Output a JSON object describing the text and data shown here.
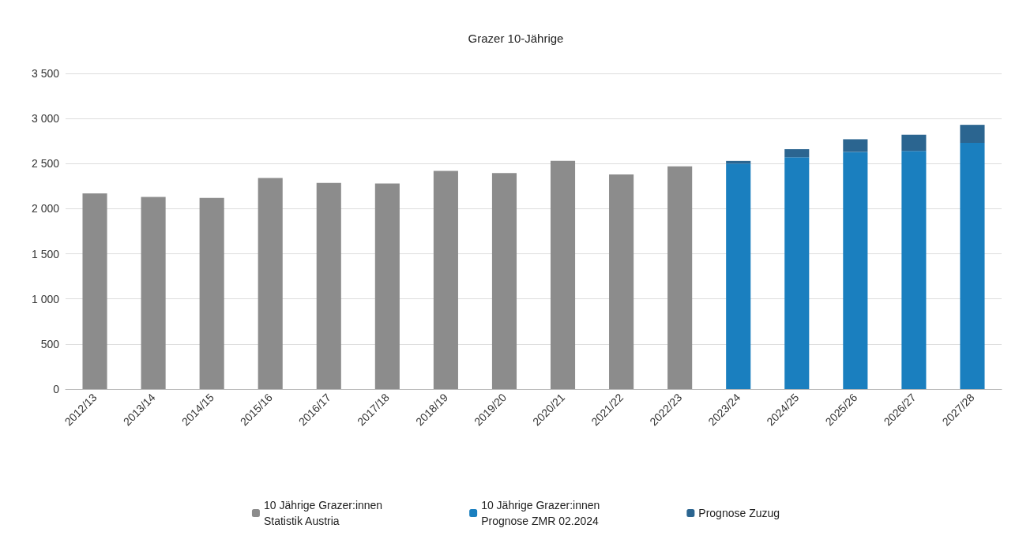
{
  "chart_data": {
    "type": "bar",
    "title": "Grazer 10-Jährige",
    "stacked": true,
    "categories": [
      "2012/13",
      "2013/14",
      "2014/15",
      "2015/16",
      "2016/17",
      "2017/18",
      "2018/19",
      "2019/20",
      "2020/21",
      "2021/22",
      "2022/23",
      "2023/24",
      "2024/25",
      "2025/26",
      "2026/27",
      "2027/28"
    ],
    "series": [
      {
        "name": "10 Jährige Grazer:innen\nStatistik Austria",
        "color": "#8c8c8c",
        "values": [
          2170,
          2130,
          2120,
          2340,
          2285,
          2280,
          2420,
          2395,
          2530,
          2380,
          2470,
          null,
          null,
          null,
          null,
          null
        ]
      },
      {
        "name": "10 Jährige Grazer:innen\nPrognose ZMR 02.2024",
        "color": "#1a7fbf",
        "values": [
          null,
          null,
          null,
          null,
          null,
          null,
          null,
          null,
          null,
          null,
          null,
          2500,
          2570,
          2630,
          2640,
          2730
        ]
      },
      {
        "name": "Prognose Zuzug",
        "color": "#2b6590",
        "values": [
          null,
          null,
          null,
          null,
          null,
          null,
          null,
          null,
          null,
          null,
          null,
          30,
          90,
          140,
          180,
          200
        ]
      }
    ],
    "ylim": [
      0,
      3500
    ],
    "yticks": [
      0,
      {
        "value": 500,
        "label": "500"
      },
      {
        "value": 1000,
        "label": "1 000"
      },
      {
        "value": 1500,
        "label": "1 500"
      },
      {
        "value": 2000,
        "label": "2 000"
      },
      {
        "value": 2500,
        "label": "2 500"
      },
      {
        "value": 3000,
        "label": "3 000"
      },
      {
        "value": 3500,
        "label": "3 500"
      }
    ],
    "grid": "y",
    "legend": "bottom"
  }
}
